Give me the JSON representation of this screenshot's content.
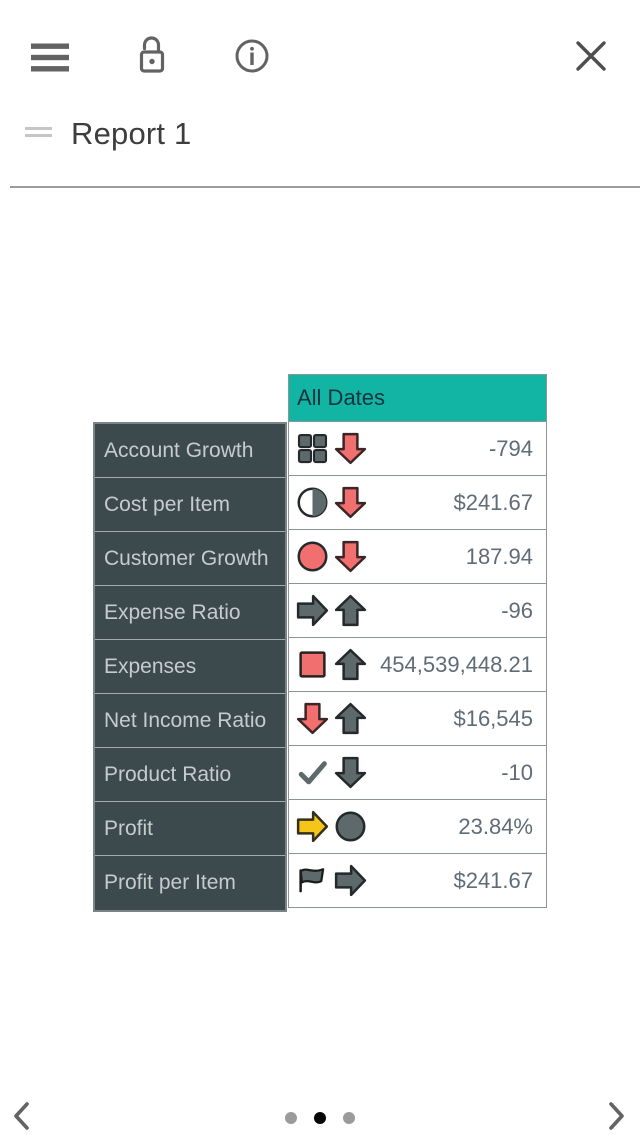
{
  "toolbar": {
    "icons": [
      "menu-icon",
      "unlock-icon",
      "info-icon",
      "close-icon"
    ]
  },
  "title": "Report 1",
  "table": {
    "column_header": "All Dates",
    "rows": [
      {
        "label": "Account Growth",
        "icons": [
          "grid-icon",
          "arrow-down-red-icon"
        ],
        "value": "-794"
      },
      {
        "label": "Cost per Item",
        "icons": [
          "half-circle-icon",
          "arrow-down-red-icon"
        ],
        "value": "$241.67"
      },
      {
        "label": "Customer Growth",
        "icons": [
          "circle-red-icon",
          "arrow-down-red-icon"
        ],
        "value": "187.94"
      },
      {
        "label": "Expense Ratio",
        "icons": [
          "arrow-right-gray-icon",
          "arrow-up-gray-icon"
        ],
        "value": "-96"
      },
      {
        "label": "Expenses",
        "icons": [
          "square-red-icon",
          "arrow-up-gray-icon"
        ],
        "value": "454,539,448.21"
      },
      {
        "label": "Net Income Ratio",
        "icons": [
          "arrow-down-red-icon",
          "arrow-up-gray-icon"
        ],
        "value": "$16,545"
      },
      {
        "label": "Product Ratio",
        "icons": [
          "check-icon",
          "arrow-down-gray-icon"
        ],
        "value": "-10"
      },
      {
        "label": "Profit",
        "icons": [
          "arrow-right-yellow-icon",
          "circle-gray-icon"
        ],
        "value": "23.84%"
      },
      {
        "label": "Profit per Item",
        "icons": [
          "flag-icon",
          "arrow-right-gray-icon"
        ],
        "value": "$241.67"
      }
    ]
  },
  "pagination": {
    "dots_active": [
      false,
      true,
      false
    ]
  },
  "colors": {
    "header_teal": "#12b5a4",
    "header_text": "#17333f",
    "label_bg": "#3c4a4e",
    "label_text": "#c6cbce",
    "value_text": "#5f6c77",
    "indicator_red": "#f1706f",
    "indicator_gray": "#5d696b",
    "indicator_yellow": "#f5c51a",
    "icon_outline": "#24292b",
    "toolbar_icon": "#636363"
  }
}
